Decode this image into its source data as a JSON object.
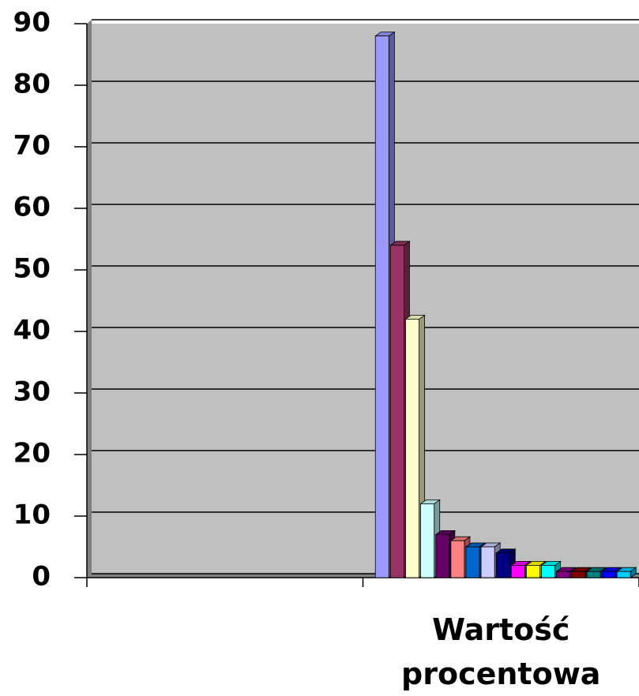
{
  "chart_data": {
    "type": "bar",
    "categories": [
      null,
      "Wartość procentowa"
    ],
    "series": [
      {
        "color": "#9999ff",
        "values": [
          null,
          88
        ]
      },
      {
        "color": "#993366",
        "values": [
          null,
          54
        ]
      },
      {
        "color": "#ffffcc",
        "values": [
          null,
          42
        ]
      },
      {
        "color": "#ccffff",
        "values": [
          null,
          12
        ]
      },
      {
        "color": "#660066",
        "values": [
          null,
          7
        ]
      },
      {
        "color": "#ff8080",
        "values": [
          null,
          6
        ]
      },
      {
        "color": "#0066cc",
        "values": [
          null,
          5
        ]
      },
      {
        "color": "#ccccff",
        "values": [
          null,
          5
        ]
      },
      {
        "color": "#000080",
        "values": [
          null,
          4
        ]
      },
      {
        "color": "#ff00ff",
        "values": [
          null,
          2
        ]
      },
      {
        "color": "#ffff00",
        "values": [
          null,
          2
        ]
      },
      {
        "color": "#00ffff",
        "values": [
          null,
          2
        ]
      },
      {
        "color": "#800080",
        "values": [
          null,
          1
        ]
      },
      {
        "color": "#800000",
        "values": [
          null,
          1
        ]
      },
      {
        "color": "#008080",
        "values": [
          null,
          1
        ]
      },
      {
        "color": "#0000ff",
        "values": [
          null,
          1
        ]
      },
      {
        "color": "#00ccff",
        "values": [
          null,
          1
        ]
      }
    ],
    "ylim": [
      0,
      90
    ],
    "yticks": [
      0,
      10,
      20,
      30,
      40,
      50,
      60,
      70,
      80,
      90
    ],
    "grid": true
  }
}
